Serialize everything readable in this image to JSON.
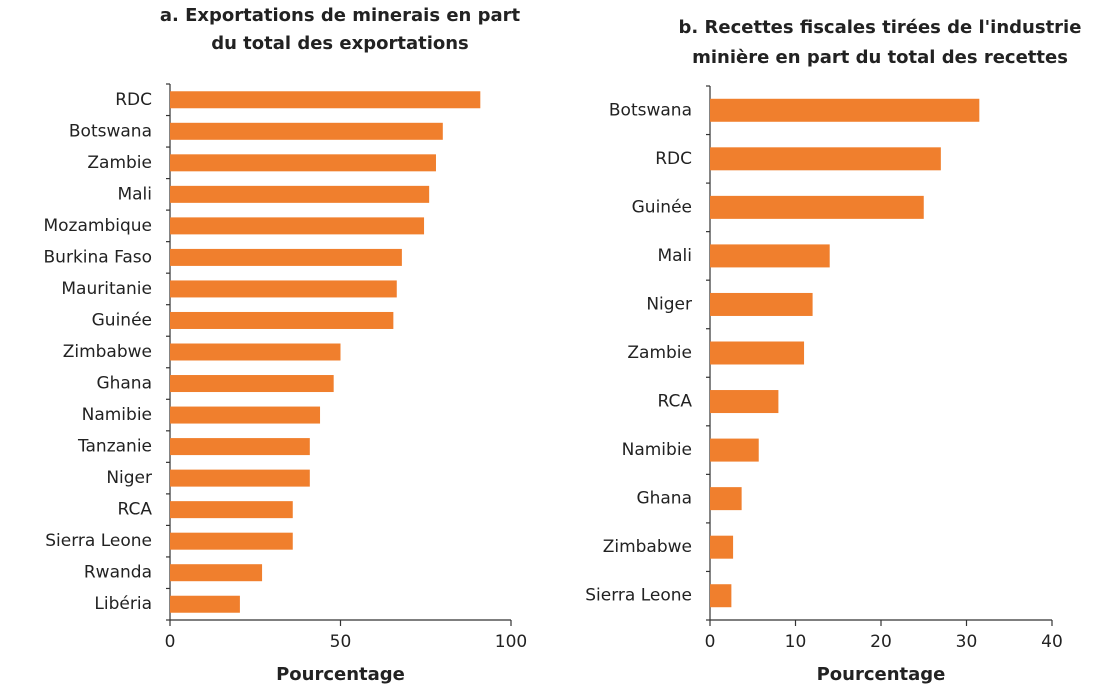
{
  "chart_data": [
    {
      "type": "bar",
      "orientation": "horizontal",
      "title": [
        "a. Exportations de minerais en part",
        "du total des exportations"
      ],
      "x_label": "Pourcentage",
      "categories": [
        "RDC",
        "Botswana",
        "Zambie",
        "Mali",
        "Mozambique",
        "Burkina Faso",
        "Mauritanie",
        "Guinée",
        "Zimbabwe",
        "Ghana",
        "Namibie",
        "Tanzanie",
        "Niger",
        "RCA",
        "Sierra Leone",
        "Rwanda",
        "Libéria"
      ],
      "values": [
        91,
        80,
        78,
        76,
        74.5,
        68,
        66.5,
        65.5,
        50,
        48,
        44,
        41,
        41,
        36,
        36,
        27,
        20.5
      ],
      "color": "#f07f2d",
      "xlim": [
        0,
        100
      ],
      "xticks": [
        0,
        50,
        100
      ]
    },
    {
      "type": "bar",
      "orientation": "horizontal",
      "title": [
        "b. Recettes fiscales tirées de l'industrie",
        "minière en part du total des recettes"
      ],
      "x_label": "Pourcentage",
      "categories": [
        "Botswana",
        "RDC",
        "Guinée",
        "Mali",
        "Niger",
        "Zambie",
        "RCA",
        "Namibie",
        "Ghana",
        "Zimbabwe",
        "Sierra Leone"
      ],
      "values": [
        31.5,
        27,
        25,
        14,
        12,
        11,
        8,
        5.7,
        3.7,
        2.7,
        2.5
      ],
      "color": "#f07f2d",
      "xlim": [
        0,
        40
      ],
      "xticks": [
        0,
        10,
        20,
        30,
        40
      ]
    }
  ]
}
